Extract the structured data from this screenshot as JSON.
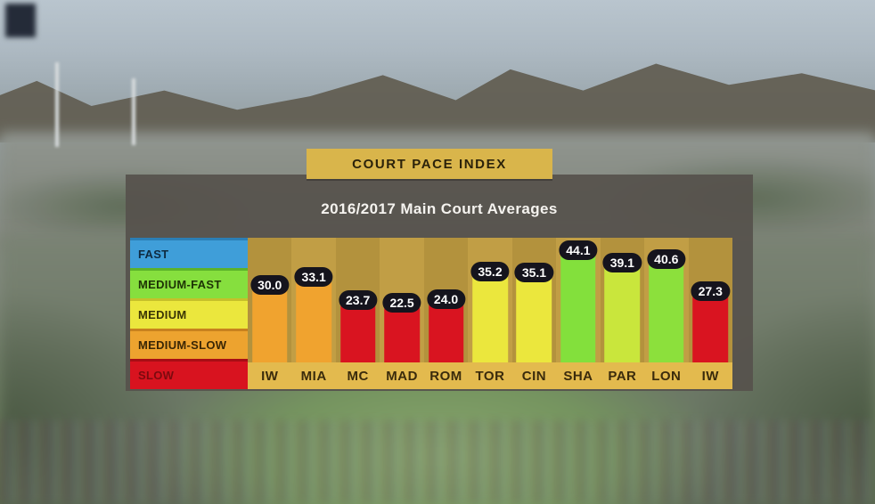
{
  "title_badge": {
    "label": "COURT PACE INDEX"
  },
  "subtitle": "2016/2017 Main Court Averages",
  "legend": {
    "items": [
      {
        "label": "FAST",
        "color": "#3f9ed9",
        "edge": "#2b7fb5",
        "text_color": "#0e2a40"
      },
      {
        "label": "MEDIUM-FAST",
        "color": "#86df3e",
        "edge": "#5cb32a",
        "text_color": "#1d3305"
      },
      {
        "label": "MEDIUM",
        "color": "#ebe73d",
        "edge": "#c6c02a",
        "text_color": "#3a3505"
      },
      {
        "label": "MEDIUM-SLOW",
        "color": "#eda32f",
        "edge": "#c8811e",
        "text_color": "#3a2605"
      },
      {
        "label": "SLOW",
        "color": "#d8131f",
        "edge": "#a80d15",
        "text_color": "#7c0a0f"
      }
    ]
  },
  "chart_data": {
    "type": "bar",
    "title": "COURT PACE INDEX",
    "subtitle": "2016/2017 Main Court Averages",
    "categories": [
      "IW",
      "MIA",
      "MC",
      "MAD",
      "ROM",
      "TOR",
      "CIN",
      "SHA",
      "PAR",
      "LON",
      "IW"
    ],
    "values": [
      30.0,
      33.1,
      23.7,
      22.5,
      24.0,
      35.2,
      35.1,
      44.1,
      39.1,
      40.6,
      27.3
    ],
    "value_labels": [
      "30.0",
      "33.1",
      "23.7",
      "22.5",
      "24.0",
      "35.2",
      "35.1",
      "44.1",
      "39.1",
      "40.6",
      "27.3"
    ],
    "bar_pace_class": [
      "medium-slow",
      "medium-slow",
      "slow",
      "slow",
      "slow",
      "medium",
      "medium",
      "medium-fast",
      "medium",
      "medium-fast",
      "slow"
    ],
    "bar_colors": [
      "#f0a32f",
      "#f0a32f",
      "#d91420",
      "#d91420",
      "#d91420",
      "#ebe73d",
      "#ebe73d",
      "#83e03c",
      "#c9e63c",
      "#8ce03c",
      "#d91420"
    ],
    "ylim": [
      0,
      51
    ],
    "grid": false,
    "legend_position": "left"
  },
  "colors": {
    "panel": "#56524c",
    "gold_badge": "#d9b54b",
    "column_stripe_dark": "#b3923d",
    "column_stripe_light": "#c19e45",
    "label_strip": "#e3ba4e",
    "value_pill": "#15141d",
    "subtitle_text": "#f5f3ef"
  }
}
